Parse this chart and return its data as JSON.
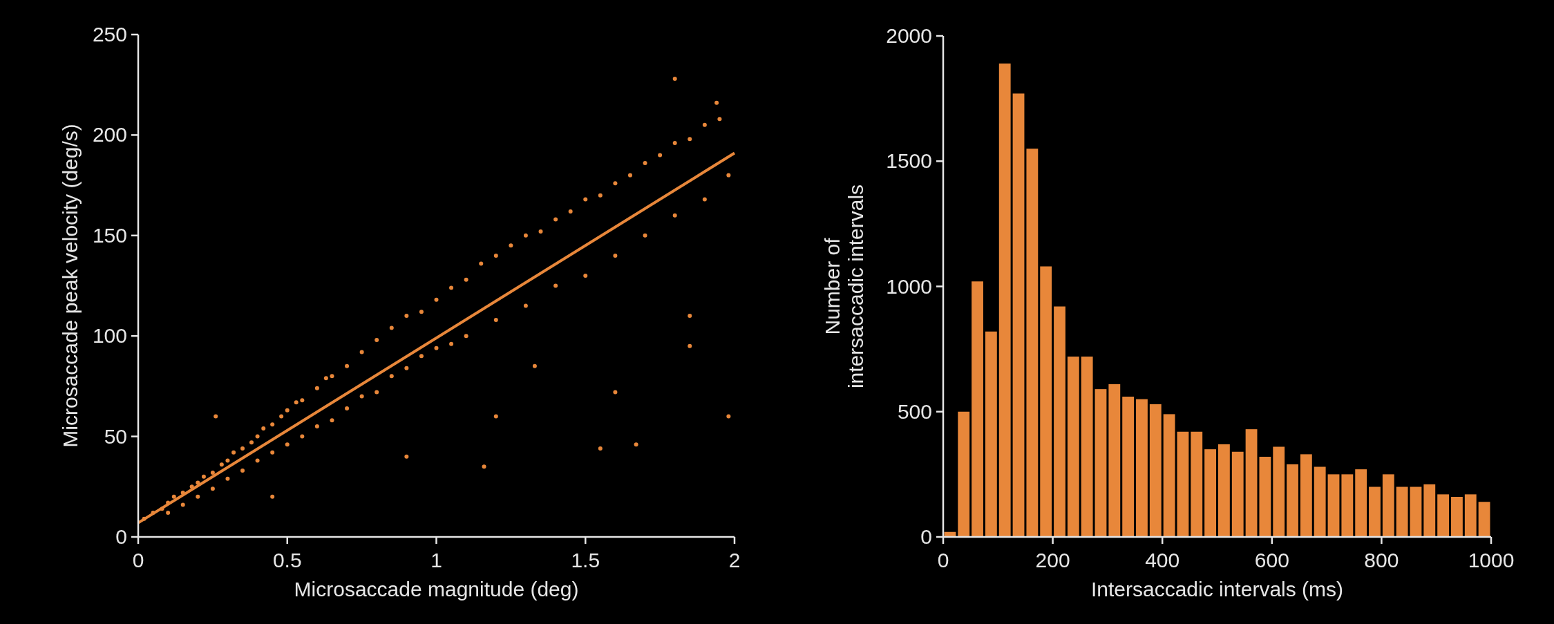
{
  "chart_data": [
    {
      "type": "scatter",
      "xlabel": "Microsaccade magnitude (deg)",
      "ylabel": "Microsaccade peak velocity (deg/s)",
      "xlim": [
        0,
        2
      ],
      "ylim": [
        0,
        250
      ],
      "xticks": [
        0,
        0.5,
        1,
        1.5,
        2
      ],
      "yticks": [
        0,
        50,
        100,
        150,
        200,
        250
      ],
      "grid": false,
      "series": [
        {
          "type": "scatter",
          "color": "#e8873a",
          "x": [
            0.02,
            0.05,
            0.08,
            0.1,
            0.1,
            0.12,
            0.15,
            0.15,
            0.18,
            0.2,
            0.2,
            0.22,
            0.25,
            0.25,
            0.28,
            0.3,
            0.3,
            0.32,
            0.35,
            0.35,
            0.38,
            0.4,
            0.4,
            0.42,
            0.45,
            0.45,
            0.48,
            0.5,
            0.5,
            0.53,
            0.55,
            0.55,
            0.6,
            0.6,
            0.63,
            0.65,
            0.65,
            0.7,
            0.7,
            0.75,
            0.75,
            0.8,
            0.8,
            0.85,
            0.85,
            0.9,
            0.9,
            0.95,
            0.95,
            1.0,
            1.0,
            1.05,
            1.05,
            1.1,
            1.1,
            1.15,
            1.2,
            1.2,
            1.25,
            1.3,
            1.3,
            1.35,
            1.4,
            1.4,
            1.45,
            1.5,
            1.5,
            1.55,
            1.6,
            1.6,
            1.65,
            1.7,
            1.7,
            1.75,
            1.8,
            1.8,
            1.85,
            1.9,
            1.9,
            1.95,
            1.98,
            1.8,
            1.94,
            1.98,
            1.67,
            1.85,
            1.85,
            1.55,
            1.16,
            1.33,
            0.26,
            0.45,
            0.9,
            1.2,
            1.6
          ],
          "values": [
            9,
            12,
            14,
            17,
            12,
            20,
            22,
            16,
            25,
            27,
            20,
            30,
            32,
            24,
            36,
            38,
            29,
            42,
            44,
            33,
            47,
            50,
            38,
            54,
            56,
            42,
            60,
            63,
            46,
            67,
            68,
            50,
            74,
            55,
            79,
            80,
            58,
            85,
            64,
            92,
            70,
            98,
            72,
            104,
            80,
            110,
            84,
            112,
            90,
            118,
            94,
            124,
            96,
            128,
            100,
            136,
            140,
            108,
            145,
            150,
            115,
            152,
            158,
            125,
            162,
            168,
            130,
            170,
            176,
            140,
            180,
            186,
            150,
            190,
            196,
            160,
            198,
            205,
            168,
            208,
            180,
            228,
            216,
            60,
            46,
            95,
            110,
            44,
            35,
            85,
            60,
            20,
            40,
            60,
            72
          ]
        },
        {
          "type": "line",
          "color": "#e8873a",
          "x": [
            0,
            2
          ],
          "values": [
            7,
            191
          ]
        }
      ]
    },
    {
      "type": "histogram",
      "xlabel": "Intersaccadic intervals (ms)",
      "ylabel": "Number of\nintersaccadic intervals",
      "xlim": [
        0,
        1000
      ],
      "ylim": [
        0,
        2000
      ],
      "xticks": [
        0,
        200,
        400,
        600,
        800,
        1000
      ],
      "yticks": [
        0,
        500,
        1000,
        1500,
        2000
      ],
      "grid": false,
      "color": "#e8873a",
      "bins": [
        0,
        25,
        50,
        75,
        100,
        125,
        150,
        175,
        200,
        225,
        250,
        275,
        300,
        325,
        350,
        375,
        400,
        425,
        450,
        475,
        500,
        525,
        550,
        575,
        600,
        625,
        650,
        675,
        700,
        725,
        750,
        775,
        800,
        825,
        850,
        875,
        900,
        925,
        950,
        975,
        1000
      ],
      "values": [
        20,
        500,
        1020,
        820,
        1890,
        1770,
        1550,
        1080,
        920,
        720,
        720,
        590,
        610,
        560,
        550,
        530,
        490,
        420,
        420,
        350,
        370,
        340,
        430,
        320,
        360,
        290,
        330,
        280,
        250,
        250,
        270,
        200,
        250,
        200,
        200,
        210,
        170,
        160,
        170,
        140
      ]
    }
  ]
}
